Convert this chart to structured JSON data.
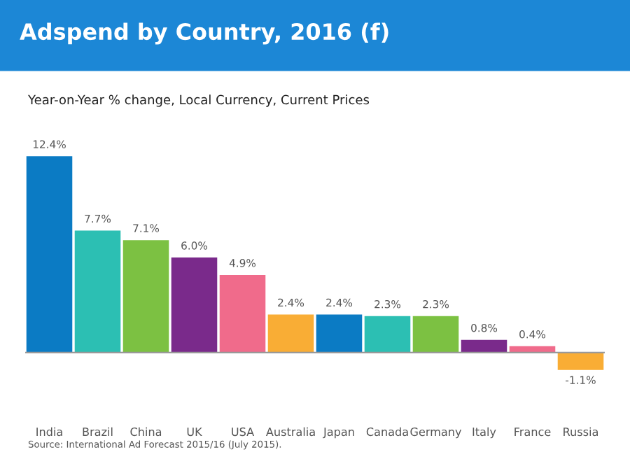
{
  "chart_data": {
    "type": "bar",
    "title": "Adspend by Country, 2016 (f)",
    "subtitle": "Year-on-Year % change, Local Currency, Current Prices",
    "categories": [
      "India",
      "Brazil",
      "China",
      "UK",
      "USA",
      "Australia",
      "Japan",
      "Canada",
      "Germany",
      "Italy",
      "France",
      "Russia"
    ],
    "values": [
      12.4,
      7.7,
      7.1,
      6.0,
      4.9,
      2.4,
      2.4,
      2.3,
      2.3,
      0.8,
      0.4,
      -1.1
    ],
    "value_labels": [
      "12.4%",
      "7.7%",
      "7.1%",
      "6.0%",
      "4.9%",
      "2.4%",
      "2.4%",
      "2.3%",
      "2.3%",
      "0.8%",
      "0.4%",
      "-1.1%"
    ],
    "colors": [
      "#0b7bc4",
      "#2cbfb3",
      "#7cc142",
      "#7a2a8b",
      "#f06b8b",
      "#f9ad35",
      "#0b7bc4",
      "#2cbfb3",
      "#7cc142",
      "#7a2a8b",
      "#f06b8b",
      "#f9ad35"
    ],
    "annotations": [
      "Source: International Ad Forecast 2015/16 (July 2015)."
    ],
    "grid": false,
    "legend": false
  }
}
